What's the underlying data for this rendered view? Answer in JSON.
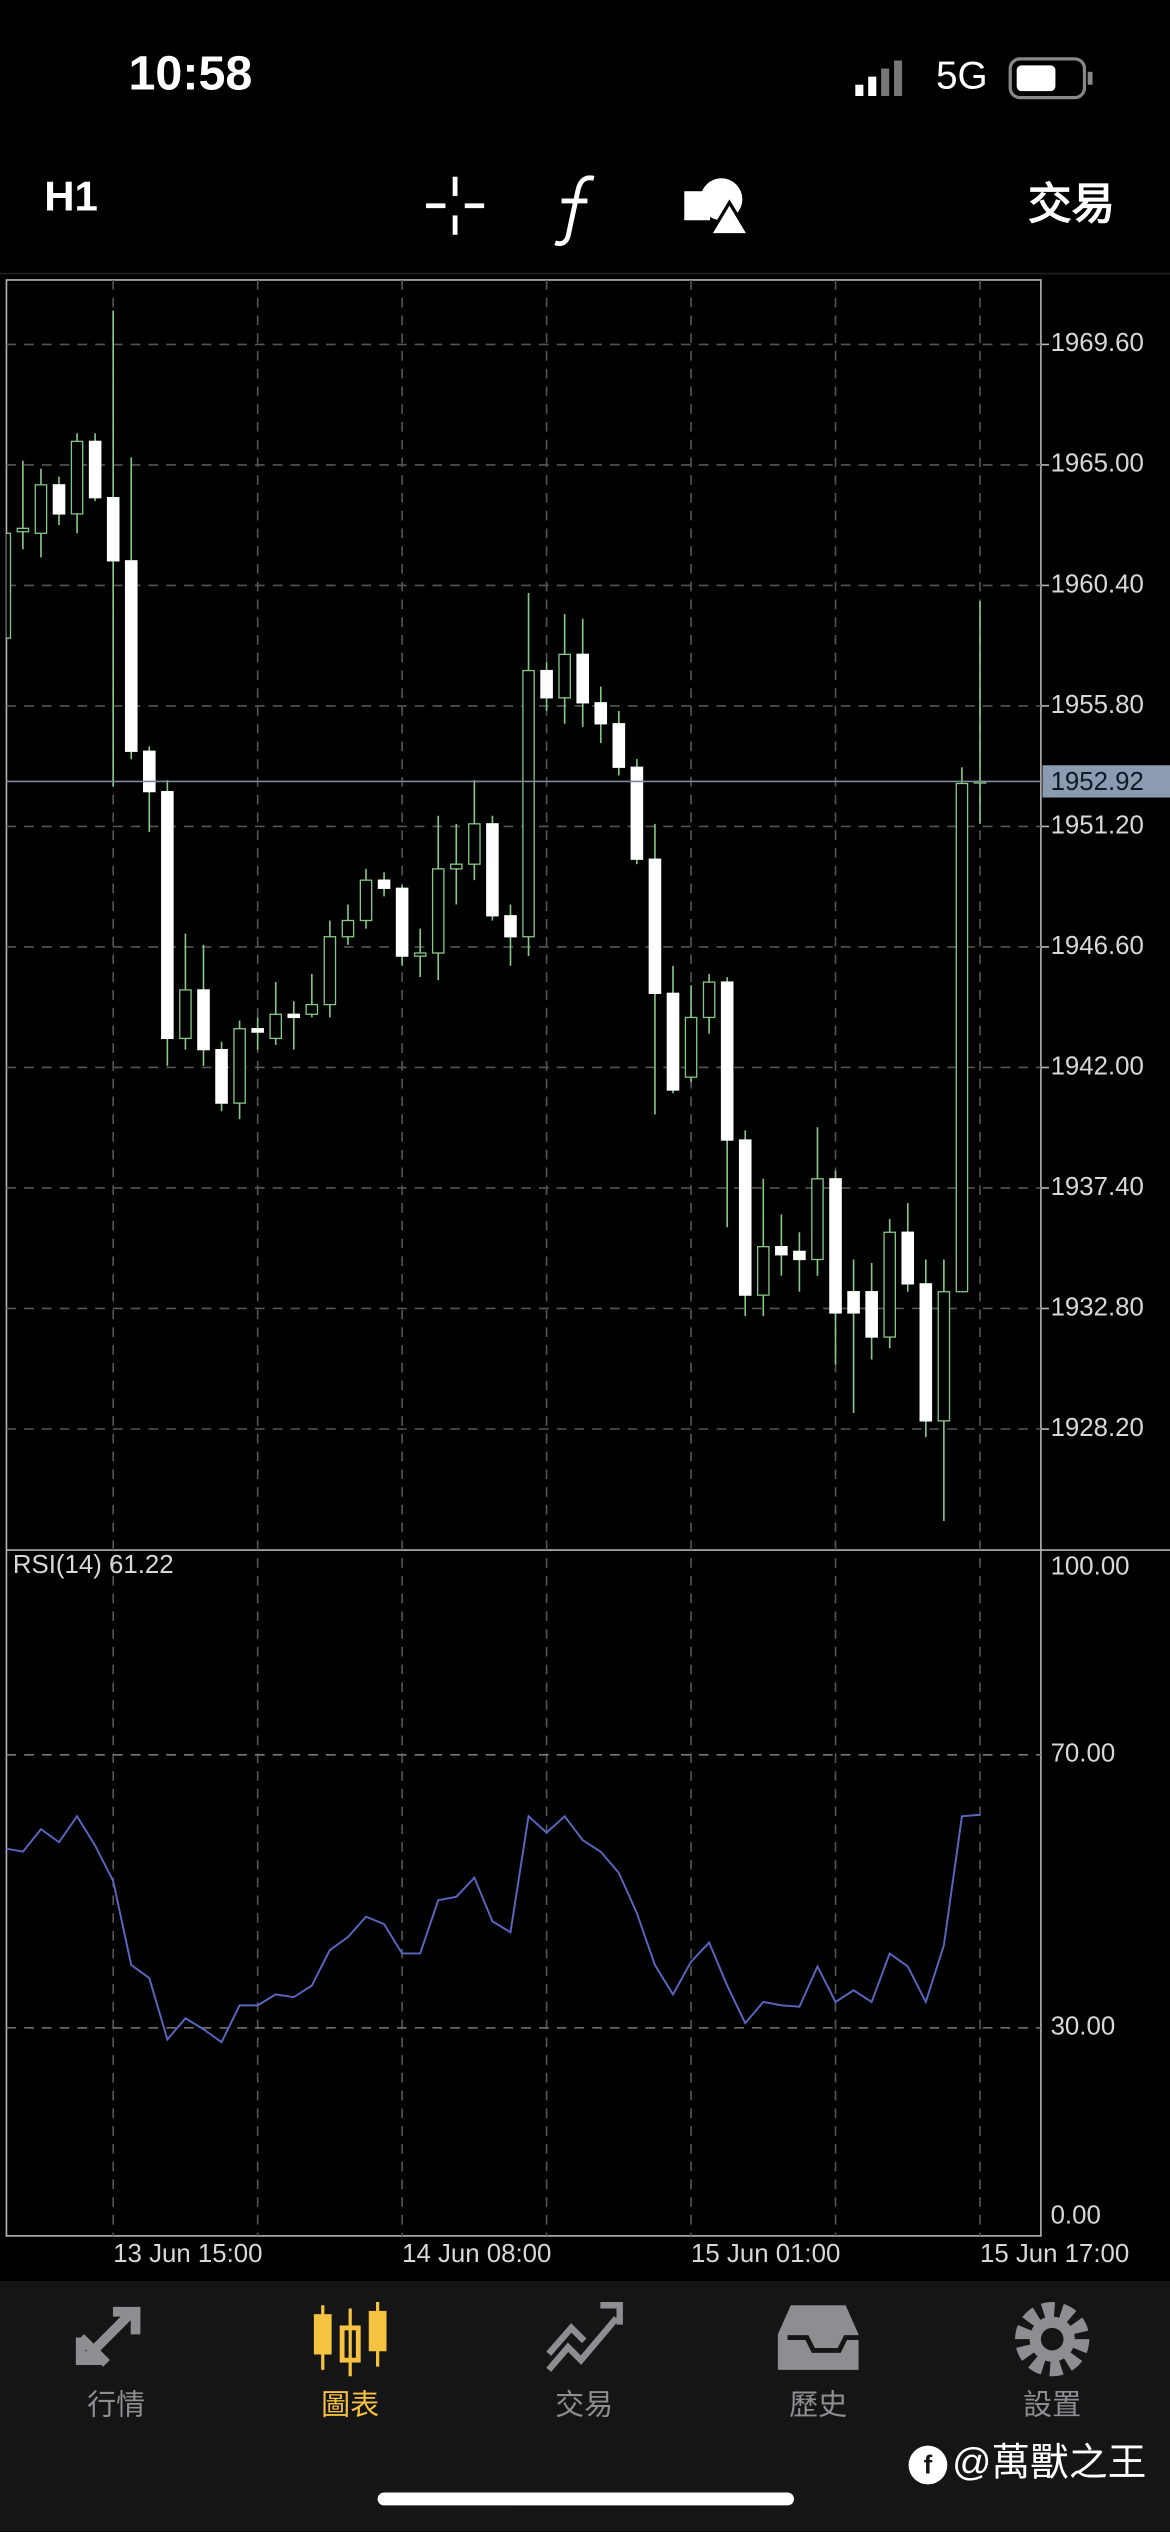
{
  "status_bar": {
    "time": "10:58",
    "network": "5G"
  },
  "toolbar": {
    "timeframe": "H1",
    "trade": "交易"
  },
  "chart_data": [
    {
      "type": "candlestick",
      "categories": [
        null,
        null,
        null,
        null,
        null,
        null,
        "13 Jun 15:00",
        null,
        null,
        null,
        null,
        null,
        null,
        null,
        null,
        null,
        null,
        null,
        null,
        null,
        null,
        null,
        "14 Jun 08:00",
        null,
        null,
        null,
        null,
        null,
        null,
        null,
        null,
        null,
        null,
        null,
        null,
        null,
        null,
        null,
        "15 Jun 01:00",
        null,
        null,
        null,
        null,
        null,
        null,
        null,
        null,
        null,
        null,
        null,
        null,
        null,
        null,
        null,
        "15 Jun 17:00"
      ],
      "open": [
        1958.39,
        1962.45,
        1962.39,
        1964.24,
        1963.13,
        1965.9,
        1963.75,
        1961.34,
        1954.07,
        1952.53,
        1943.11,
        1944.96,
        1942.68,
        1940.64,
        1943.48,
        1943.11,
        1944.03,
        1944.03,
        1944.4,
        1946.99,
        1947.61,
        1949.15,
        1948.84,
        1946.25,
        1946.37,
        1949.58,
        1949.76,
        1951.3,
        1947.79,
        1946.99,
        1957.15,
        1956.11,
        1957.77,
        1955.92,
        1955.12,
        1953.46,
        1949.95,
        1944.83,
        1941.63,
        1943.91,
        1945.26,
        1939.23,
        1933.31,
        1935.16,
        1934.98,
        1934.67,
        1937.75,
        1933.44,
        1933.44,
        1931.71,
        1935.71,
        1933.74,
        1928.51,
        1933.44,
        1952.92
      ],
      "high": [
        1962.7,
        1965.16,
        1964.86,
        1964.55,
        1966.21,
        1966.21,
        1970.89,
        1965.29,
        1954.26,
        1952.97,
        1947.11,
        1946.68,
        1942.98,
        1943.79,
        1943.91,
        1945.26,
        1944.53,
        1945.57,
        1947.61,
        1948.22,
        1949.58,
        1949.45,
        1948.96,
        1947.3,
        1951.61,
        1951.3,
        1952.97,
        1951.61,
        1948.22,
        1960.11,
        1957.46,
        1959.31,
        1959.13,
        1956.54,
        1955.61,
        1953.77,
        1951.3,
        1945.88,
        1945.14,
        1945.57,
        1945.45,
        1939.6,
        1937.75,
        1936.39,
        1935.71,
        1939.72,
        1938.06,
        1934.67,
        1934.54,
        1936.21,
        1936.82,
        1934.67,
        1934.67,
        1953.46,
        1959.8
      ],
      "low": [
        1958.39,
        1961.78,
        1961.47,
        1962.7,
        1962.39,
        1963.62,
        1952.72,
        1953.77,
        1950.99,
        1942.06,
        1942.68,
        1942.06,
        1940.33,
        1940.03,
        1942.68,
        1942.86,
        1942.68,
        1943.91,
        1943.91,
        1946.68,
        1947.3,
        1948.53,
        1945.88,
        1945.45,
        1945.33,
        1948.22,
        1949.15,
        1947.61,
        1945.88,
        1946.25,
        1955.61,
        1955.12,
        1955.0,
        1954.38,
        1953.15,
        1949.76,
        1940.21,
        1941.01,
        1941.44,
        1943.29,
        1935.9,
        1932.51,
        1932.51,
        1934.05,
        1933.44,
        1934.05,
        1930.66,
        1928.81,
        1930.85,
        1931.28,
        1933.44,
        1927.89,
        1924.69,
        1933.44,
        1951.3
      ],
      "close": [
        1962.39,
        1962.58,
        1964.24,
        1963.13,
        1965.9,
        1963.75,
        1961.34,
        1954.07,
        1952.53,
        1943.11,
        1944.96,
        1942.68,
        1940.64,
        1943.48,
        1943.35,
        1944.03,
        1943.91,
        1944.4,
        1946.99,
        1947.61,
        1949.15,
        1948.84,
        1946.25,
        1946.37,
        1949.58,
        1949.76,
        1951.3,
        1947.79,
        1946.99,
        1957.15,
        1956.11,
        1957.77,
        1955.92,
        1955.12,
        1953.46,
        1949.95,
        1944.83,
        1941.14,
        1943.91,
        1945.26,
        1939.23,
        1933.31,
        1935.16,
        1934.85,
        1934.67,
        1937.75,
        1932.63,
        1932.63,
        1931.71,
        1935.71,
        1933.74,
        1928.51,
        1933.44,
        1952.84,
        1952.92
      ],
      "up_color": "#000000",
      "down_color": "#ffffff",
      "wick_color": "#86c986",
      "current_price": 1952.92,
      "ylim": [
        1923.58,
        1972.06
      ],
      "yticks": [
        {
          "value": 1969.6,
          "label": "1969.60"
        },
        {
          "value": 1965,
          "label": "1965.00"
        },
        {
          "value": 1960.4,
          "label": "1960.40"
        },
        {
          "value": 1955.8,
          "label": "1955.80"
        },
        {
          "value": 1951.2,
          "label": "1951.20"
        },
        {
          "value": 1946.6,
          "label": "1946.60"
        },
        {
          "value": 1942,
          "label": "1942.00"
        },
        {
          "value": 1937.4,
          "label": "1937.40"
        },
        {
          "value": 1932.8,
          "label": "1932.80"
        },
        {
          "value": 1928.2,
          "label": "1928.20"
        }
      ],
      "grid": true
    },
    {
      "type": "line",
      "label": "RSI(14) 61.22",
      "color": "#5a66c0",
      "values": [
        56.3,
        55.8,
        59.1,
        57.2,
        61.0,
        56.7,
        51.5,
        39.2,
        37.3,
        28.3,
        31.4,
        29.8,
        27.9,
        33.3,
        33.3,
        34.9,
        34.5,
        36.2,
        41.4,
        43.3,
        46.3,
        45.2,
        40.9,
        40.9,
        48.7,
        49.2,
        52.0,
        45.6,
        44.0,
        61.0,
        58.6,
        61.0,
        57.5,
        55.8,
        52.7,
        46.8,
        39.2,
        34.9,
        39.7,
        42.5,
        36.2,
        30.7,
        33.8,
        33.3,
        33.1,
        39.0,
        33.8,
        35.5,
        33.8,
        40.9,
        39.0,
        33.8,
        42.1,
        61.0,
        61.22
      ],
      "ylim": [
        0,
        100
      ],
      "yticks": [
        {
          "value": 100,
          "label": "100.00"
        },
        {
          "value": 70,
          "label": "70.00"
        },
        {
          "value": 30,
          "label": "30.00"
        },
        {
          "value": 0,
          "label": "0.00"
        }
      ],
      "grid": true
    }
  ],
  "tabs": [
    "行情",
    "圖表",
    "交易",
    "歷史",
    "設置"
  ],
  "watermark": "@萬獸之王"
}
